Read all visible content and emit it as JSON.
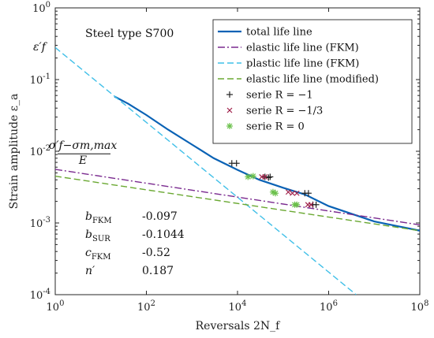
{
  "chart_data": {
    "type": "line",
    "x_scale": "log",
    "y_scale": "log",
    "xlim": [
      1,
      100000000
    ],
    "ylim": [
      0.0001,
      1
    ],
    "xlabel": "Reversals 2N_f",
    "ylabel": "Strain amplitude ε_a",
    "x_ticks": [
      {
        "v": 1,
        "exp": "0"
      },
      {
        "v": 100,
        "exp": "2"
      },
      {
        "v": 10000,
        "exp": "4"
      },
      {
        "v": 1000000,
        "exp": "6"
      },
      {
        "v": 100000000,
        "exp": "8"
      }
    ],
    "y_ticks": [
      {
        "v": 1,
        "exp": "0"
      },
      {
        "v": 0.1,
        "exp": "-1"
      },
      {
        "v": 0.01,
        "exp": "-2"
      },
      {
        "v": 0.001,
        "exp": "-3"
      },
      {
        "v": 0.0001,
        "exp": "-4"
      }
    ],
    "tick_base": "10",
    "annotation_title": "Steel type S700",
    "eps_f_label": "ε′f",
    "eps_f_value": 0.29,
    "sigma_label_num": "σ′f−σm,max",
    "sigma_label_den": "E",
    "sigma_ratio_value": 0.0068,
    "params": [
      {
        "name": "b",
        "sub": "FKM",
        "value": "-0.097"
      },
      {
        "name": "b",
        "sub": "SUR",
        "value": "-0.1044"
      },
      {
        "name": "c",
        "sub": "FKM",
        "value": "-0.52"
      },
      {
        "name": "n′",
        "sub": "",
        "value": "0.187"
      }
    ],
    "series": [
      {
        "key": "total",
        "name": "total life line",
        "color": "#0a62b5",
        "style": "solid",
        "x": [
          20,
          40,
          100,
          300,
          1000,
          3000,
          10000,
          30000,
          100000,
          300000,
          1000000,
          10000000,
          100000000
        ],
        "y": [
          0.058,
          0.046,
          0.032,
          0.02,
          0.0124,
          0.008,
          0.0055,
          0.004,
          0.0031,
          0.0025,
          0.00172,
          0.00105,
          0.00078
        ]
      },
      {
        "key": "elastic_fkm",
        "name": "elastic life line (FKM)",
        "color": "#7a2a8f",
        "style": "dashdot",
        "x": [
          1,
          100000000
        ],
        "y": [
          0.0056,
          0.00094
        ]
      },
      {
        "key": "plastic_fkm",
        "name": "plastic life line (FKM)",
        "color": "#3fbfe8",
        "style": "dashed",
        "x": [
          1,
          4000000
        ],
        "y": [
          0.28,
          0.0001
        ]
      },
      {
        "key": "elastic_mod",
        "name": "elastic life line (modified)",
        "color": "#6aa832",
        "style": "dashed",
        "x": [
          1,
          100000000
        ],
        "y": [
          0.0045,
          0.00078
        ]
      },
      {
        "key": "serie_m1",
        "name": "serie R = −1",
        "color": "#222222",
        "marker": "plus",
        "x": [
          7500,
          9500,
          40000,
          48000,
          52000,
          300000,
          360000,
          450000,
          530000
        ],
        "y": [
          0.0068,
          0.0068,
          0.0044,
          0.0043,
          0.0044,
          0.0026,
          0.0026,
          0.0018,
          0.0018
        ]
      },
      {
        "key": "serie_m13",
        "name": "serie R = −1/3",
        "color": "#a0214a",
        "marker": "x",
        "x": [
          34000,
          40000,
          130000,
          160000,
          200000,
          350000,
          410000
        ],
        "y": [
          0.0044,
          0.0044,
          0.0027,
          0.0026,
          0.0026,
          0.0018,
          0.0018
        ]
      },
      {
        "key": "serie_0",
        "name": "serie R = 0",
        "color": "#6ac04a",
        "marker": "star",
        "x": [
          17000,
          22000,
          60000,
          68000,
          180000,
          200000
        ],
        "y": [
          0.0044,
          0.0045,
          0.0027,
          0.0026,
          0.0018,
          0.0018
        ]
      }
    ]
  }
}
